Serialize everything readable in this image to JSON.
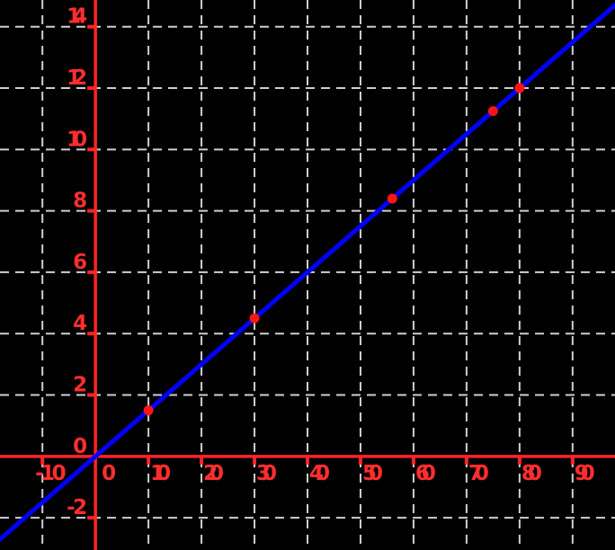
{
  "chart": {
    "background": "#000000",
    "axis_color": "#ff2424",
    "label_color": "#ff2e2e",
    "grid_color": "#cfcfcf",
    "line_color": "#0000ff",
    "point_color": "#ff1414"
  },
  "chart_data": {
    "type": "scatter",
    "title": "",
    "xlabel": "",
    "ylabel": "",
    "points": [
      {
        "x": 10,
        "y": 1.5
      },
      {
        "x": 30,
        "y": 4.5
      },
      {
        "x": 56,
        "y": 8.4
      },
      {
        "x": 75,
        "y": 11.25
      },
      {
        "x": 80,
        "y": 12
      }
    ],
    "trend_line": {
      "slope": 0.15,
      "intercept": 0
    },
    "x_ticks": [
      -10,
      0,
      10,
      20,
      30,
      40,
      50,
      60,
      70,
      80,
      90
    ],
    "y_ticks": [
      -2,
      0,
      2,
      4,
      6,
      8,
      10,
      12,
      14
    ],
    "x_range": [
      -18,
      98
    ],
    "y_range": [
      -3.05,
      14.87
    ],
    "grid": true,
    "grid_style": "dashed",
    "axes_through_origin": true,
    "legend": false
  }
}
